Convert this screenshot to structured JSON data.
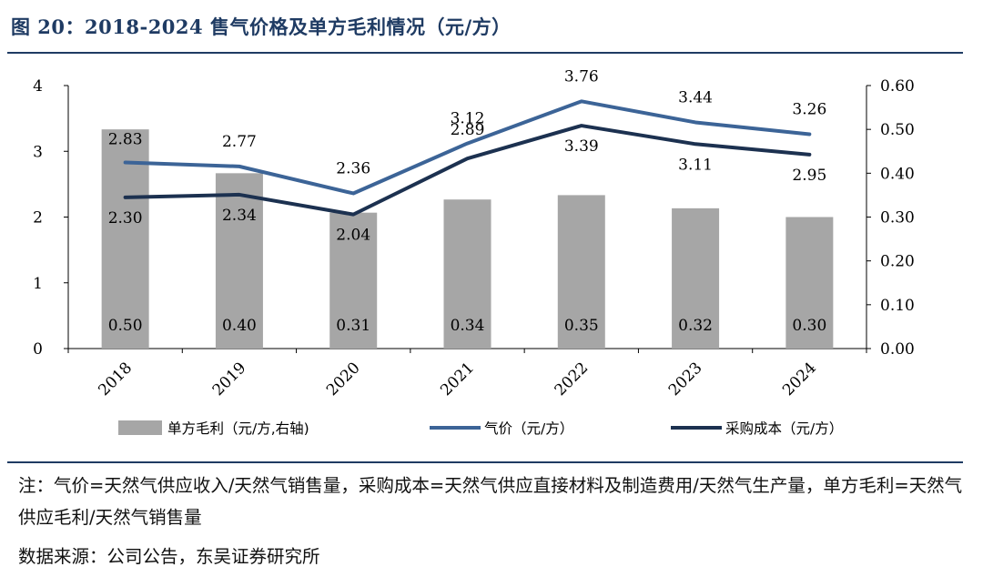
{
  "title": "图 20：2018-2024 售气价格及单方毛利情况（元/方）",
  "note": "注：气价=天然气供应收入/天然气销售量，采购成本=天然气供应直接材料及制造费用/天然气生产量，单方毛利=天然气供应毛利/天然气销售量",
  "source": "数据来源：公司公告，东吴证券研究所",
  "colors": {
    "title": "#1f3b63",
    "bar": "#a6a6a6",
    "price": "#3c6497",
    "cost": "#1c3150"
  },
  "chart_data": {
    "type": "bar",
    "categories": [
      "2018",
      "2019",
      "2020",
      "2021",
      "2022",
      "2023",
      "2024"
    ],
    "series": [
      {
        "name": "单方毛利（元/方,右轴)",
        "type": "bar",
        "axis": "right",
        "values": [
          0.5,
          0.4,
          0.31,
          0.34,
          0.35,
          0.32,
          0.3
        ],
        "labels": [
          "0.50",
          "0.40",
          "0.31",
          "0.34",
          "0.35",
          "0.32",
          "0.30"
        ]
      },
      {
        "name": "气价（元/方）",
        "type": "line",
        "axis": "left",
        "values": [
          2.83,
          2.77,
          2.36,
          3.12,
          3.76,
          3.44,
          3.26
        ],
        "labels": [
          "2.83",
          "2.77",
          "2.36",
          "3.12",
          "3.76",
          "3.44",
          "3.26"
        ]
      },
      {
        "name": "采购成本（元/方）",
        "type": "line",
        "axis": "left",
        "values": [
          2.3,
          2.34,
          2.04,
          2.89,
          3.39,
          3.11,
          2.95
        ],
        "labels": [
          "2.30",
          "2.34",
          "2.04",
          "2.89",
          "3.39",
          "3.11",
          "2.95"
        ]
      }
    ],
    "y_left": {
      "range": [
        0,
        4
      ],
      "ticks": [
        "0",
        "1",
        "2",
        "3",
        "4"
      ]
    },
    "y_right": {
      "range": [
        0,
        0.6
      ],
      "ticks": [
        "0.00",
        "0.10",
        "0.20",
        "0.30",
        "0.40",
        "0.50",
        "0.60"
      ]
    },
    "legend_position": "bottom",
    "grid": false
  }
}
